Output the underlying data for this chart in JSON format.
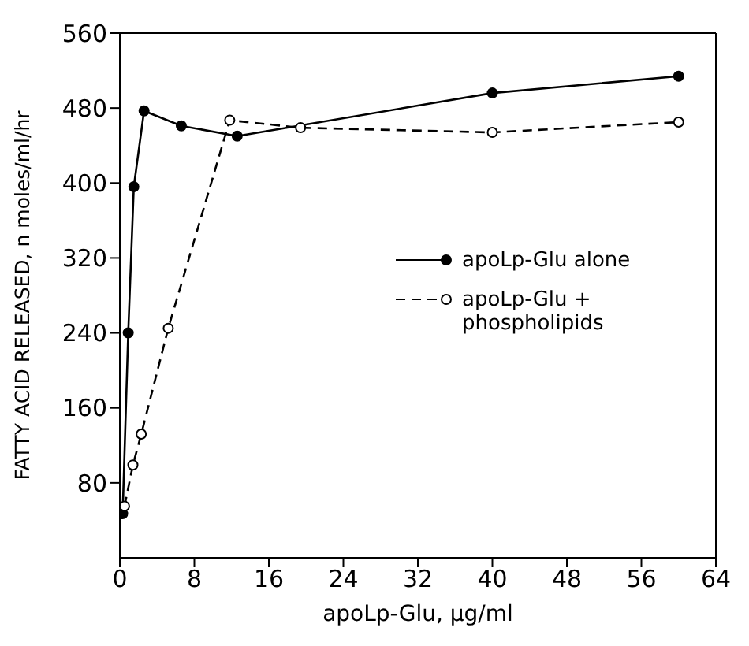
{
  "chart_data": {
    "type": "line",
    "xlabel": "apoLp-Glu, µg/ml",
    "ylabel": "FATTY ACID RELEASED, n moles/ml/hr",
    "xlim": [
      0,
      64
    ],
    "xticks": [
      0,
      8,
      16,
      24,
      32,
      40,
      48,
      56,
      64
    ],
    "ylim": [
      0,
      560
    ],
    "yticks": [
      80,
      160,
      240,
      320,
      400,
      480,
      560
    ],
    "legend": "right",
    "marker": "circle",
    "grid": false,
    "series": [
      {
        "name": "apoLp-Glu alone",
        "color": "#000000",
        "line_style": "solid",
        "x": [
          0.3,
          0.9,
          1.5,
          2.6,
          6.6,
          12.6,
          40,
          60
        ],
        "values": [
          47,
          240,
          396,
          477,
          461,
          450,
          496,
          514
        ]
      },
      {
        "name": "apoLp-Glu + phospholipids",
        "color": "#000000",
        "line_style": "dashed",
        "x": [
          0.5,
          1.4,
          2.3,
          5.2,
          11.8,
          19.4,
          40,
          60
        ],
        "values": [
          55,
          99,
          132,
          245,
          467,
          459,
          454,
          465
        ]
      }
    ]
  }
}
